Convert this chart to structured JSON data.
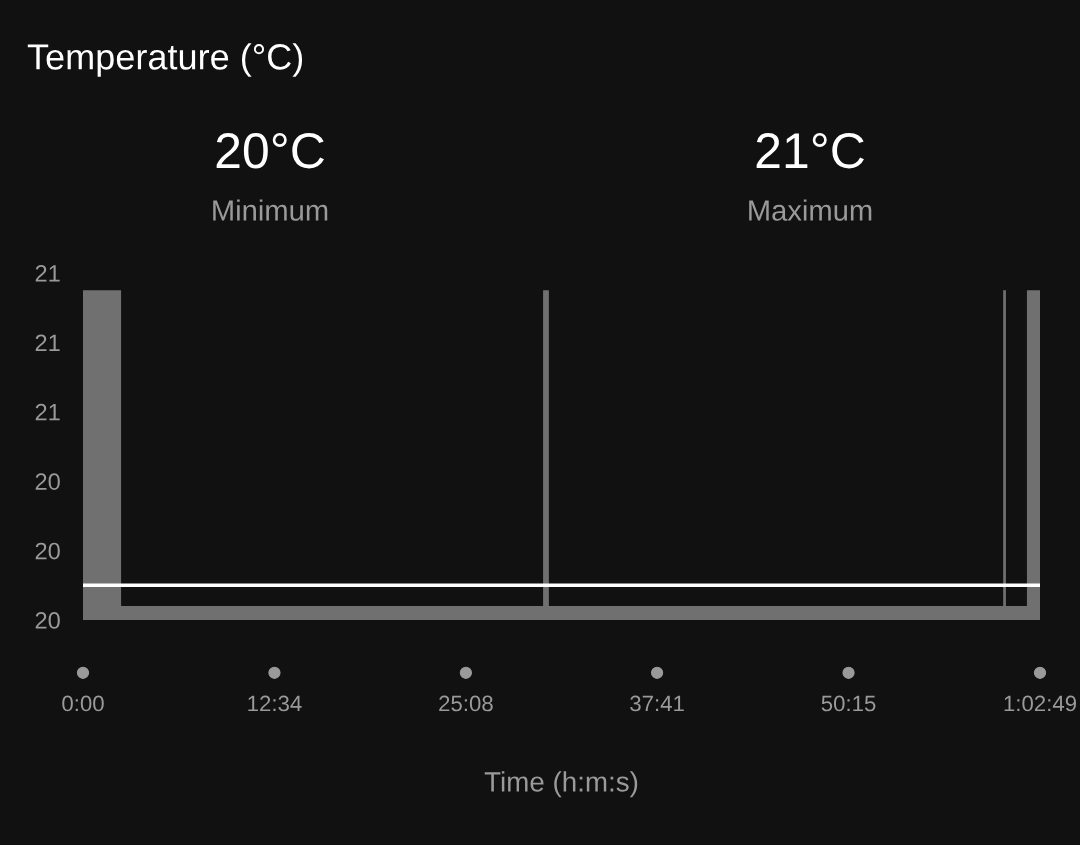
{
  "chart_data": {
    "type": "area",
    "title": "Temperature (°C)",
    "xlabel": "Time (h:m:s)",
    "annotations": [
      "20°C",
      "Minimum",
      "21°C",
      "Maximum"
    ],
    "x": [
      0,
      2.5,
      30.2,
      30.58,
      60.4,
      60.58,
      61.96,
      62.817
    ],
    "series": [
      {
        "color": "#707070",
        "values": [
          20.95,
          20.04,
          20.95,
          20.04,
          20.95,
          20.04,
          20.95,
          20.95
        ]
      }
    ],
    "xlim": [
      0,
      62.817
    ],
    "xticks": [
      {
        "value": 0,
        "label": "0:00"
      },
      {
        "value": 12.567,
        "label": "12:34"
      },
      {
        "value": 25.133,
        "label": "25:08"
      },
      {
        "value": 37.683,
        "label": "37:41"
      },
      {
        "value": 50.25,
        "label": "50:15"
      },
      {
        "value": 62.817,
        "label": "1:02:49"
      }
    ],
    "ylim": [
      20.0,
      21.0
    ],
    "yticks": [
      {
        "value": 20.0,
        "label": "20"
      },
      {
        "value": 20.2,
        "label": "20"
      },
      {
        "value": 20.4,
        "label": "20"
      },
      {
        "value": 20.6,
        "label": "21"
      },
      {
        "value": 20.8,
        "label": "21"
      },
      {
        "value": 21.0,
        "label": "21"
      }
    ],
    "ref_lines": [
      {
        "axis": "y",
        "value": 20.1,
        "color": "#ffffff"
      }
    ],
    "grid": false
  }
}
